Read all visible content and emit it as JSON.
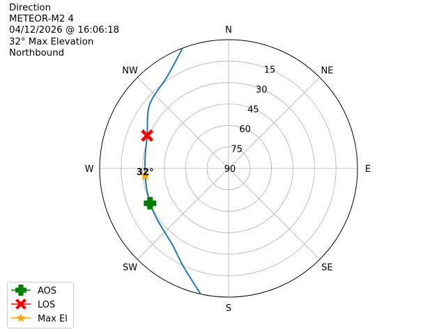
{
  "chart_data": {
    "type": "polar",
    "title_lines": [
      "Direction",
      "METEOR-M2 4",
      "04/12/2026 @ 16:06:18",
      "32° Max Elevation",
      "Northbound"
    ],
    "radial_axis": {
      "quantity": "elevation",
      "range": [
        90,
        0
      ],
      "ticks": [
        15,
        30,
        45,
        60,
        75,
        90
      ],
      "tick_labels": [
        "15",
        "30",
        "45",
        "60",
        "75",
        "90"
      ]
    },
    "angular_axis": {
      "quantity": "azimuth",
      "direction": "clockwise",
      "zero": "north",
      "tick_labels": [
        "N",
        "NE",
        "E",
        "SE",
        "S",
        "SW",
        "W",
        "NW"
      ]
    },
    "grid": true,
    "track": {
      "color": "#1f77b4",
      "points": [
        [
          192.5,
          0
        ],
        [
          204.7,
          14.5
        ],
        [
          215.8,
          23.5
        ],
        [
          230,
          28
        ],
        [
          242,
          29.6
        ],
        [
          255,
          31
        ],
        [
          268,
          31.6
        ],
        [
          280,
          31
        ],
        [
          292,
          28.7
        ],
        [
          309,
          19.1
        ],
        [
          326.3,
          12.8
        ],
        [
          339.1,
          0
        ]
      ]
    },
    "markers": [
      {
        "name": "AOS",
        "az": 246,
        "el": 30,
        "color": "#008000",
        "marker": "plus"
      },
      {
        "name": "LOS",
        "az": 292,
        "el": 28.7,
        "color": "#ff0000",
        "marker": "x"
      },
      {
        "name": "Max El",
        "az": 265,
        "el": 31.5,
        "color": "#ffa500",
        "marker": "star"
      }
    ],
    "annotation": "32°",
    "legend_placement": "bottom-left"
  }
}
